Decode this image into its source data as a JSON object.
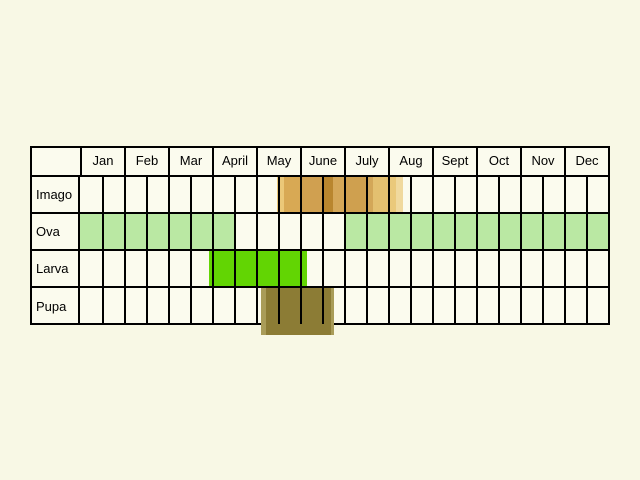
{
  "colors": {
    "page_background": "#f8f8e5",
    "cell_background": "#fbfbee",
    "grid_line": "#000000",
    "text": "#000000"
  },
  "chart_data": {
    "type": "table",
    "subtype": "lifecycle-phenology-gantt",
    "title": "",
    "months": [
      "Jan",
      "Feb",
      "Mar",
      "April",
      "May",
      "June",
      "July",
      "Aug",
      "Sept",
      "Oct",
      "Nov",
      "Dec"
    ],
    "halves_per_month": 2,
    "unit": "segment start/end measured in months, 0 = start of Jan, 12 = end of Dec",
    "rows": [
      {
        "label": "Imago",
        "segments": [
          {
            "start": 4.48,
            "end": 4.64,
            "color": "#ebc878"
          },
          {
            "start": 4.64,
            "end": 5.0,
            "color": "#d8a954"
          },
          {
            "start": 5.0,
            "end": 5.5,
            "color": "#d0a050"
          },
          {
            "start": 5.5,
            "end": 5.75,
            "color": "#b9862e"
          },
          {
            "start": 5.75,
            "end": 6.0,
            "color": "#d4a758"
          },
          {
            "start": 6.0,
            "end": 6.5,
            "color": "#cfa04f"
          },
          {
            "start": 6.5,
            "end": 6.66,
            "color": "#d3a758"
          },
          {
            "start": 6.66,
            "end": 7.0,
            "color": "#e3c070"
          },
          {
            "start": 7.0,
            "end": 7.18,
            "color": "#eac97b"
          },
          {
            "start": 7.18,
            "end": 7.34,
            "color": "#f0d99e"
          }
        ]
      },
      {
        "label": "Ova",
        "segments": [
          {
            "start": 0.0,
            "end": 3.5,
            "color": "#bae8a3"
          },
          {
            "start": 6.0,
            "end": 12.0,
            "color": "#bae8a3"
          }
        ]
      },
      {
        "label": "Larva",
        "segments": [
          {
            "start": 2.93,
            "end": 5.16,
            "color": "#62d503"
          }
        ]
      },
      {
        "label": "Pupa",
        "extends_below_chart": true,
        "segments": [
          {
            "start": 4.11,
            "end": 4.23,
            "color": "#a99c58"
          },
          {
            "start": 4.23,
            "end": 5.7,
            "color": "#8c7c35"
          },
          {
            "start": 5.7,
            "end": 5.77,
            "color": "#a99c58"
          }
        ]
      }
    ]
  }
}
